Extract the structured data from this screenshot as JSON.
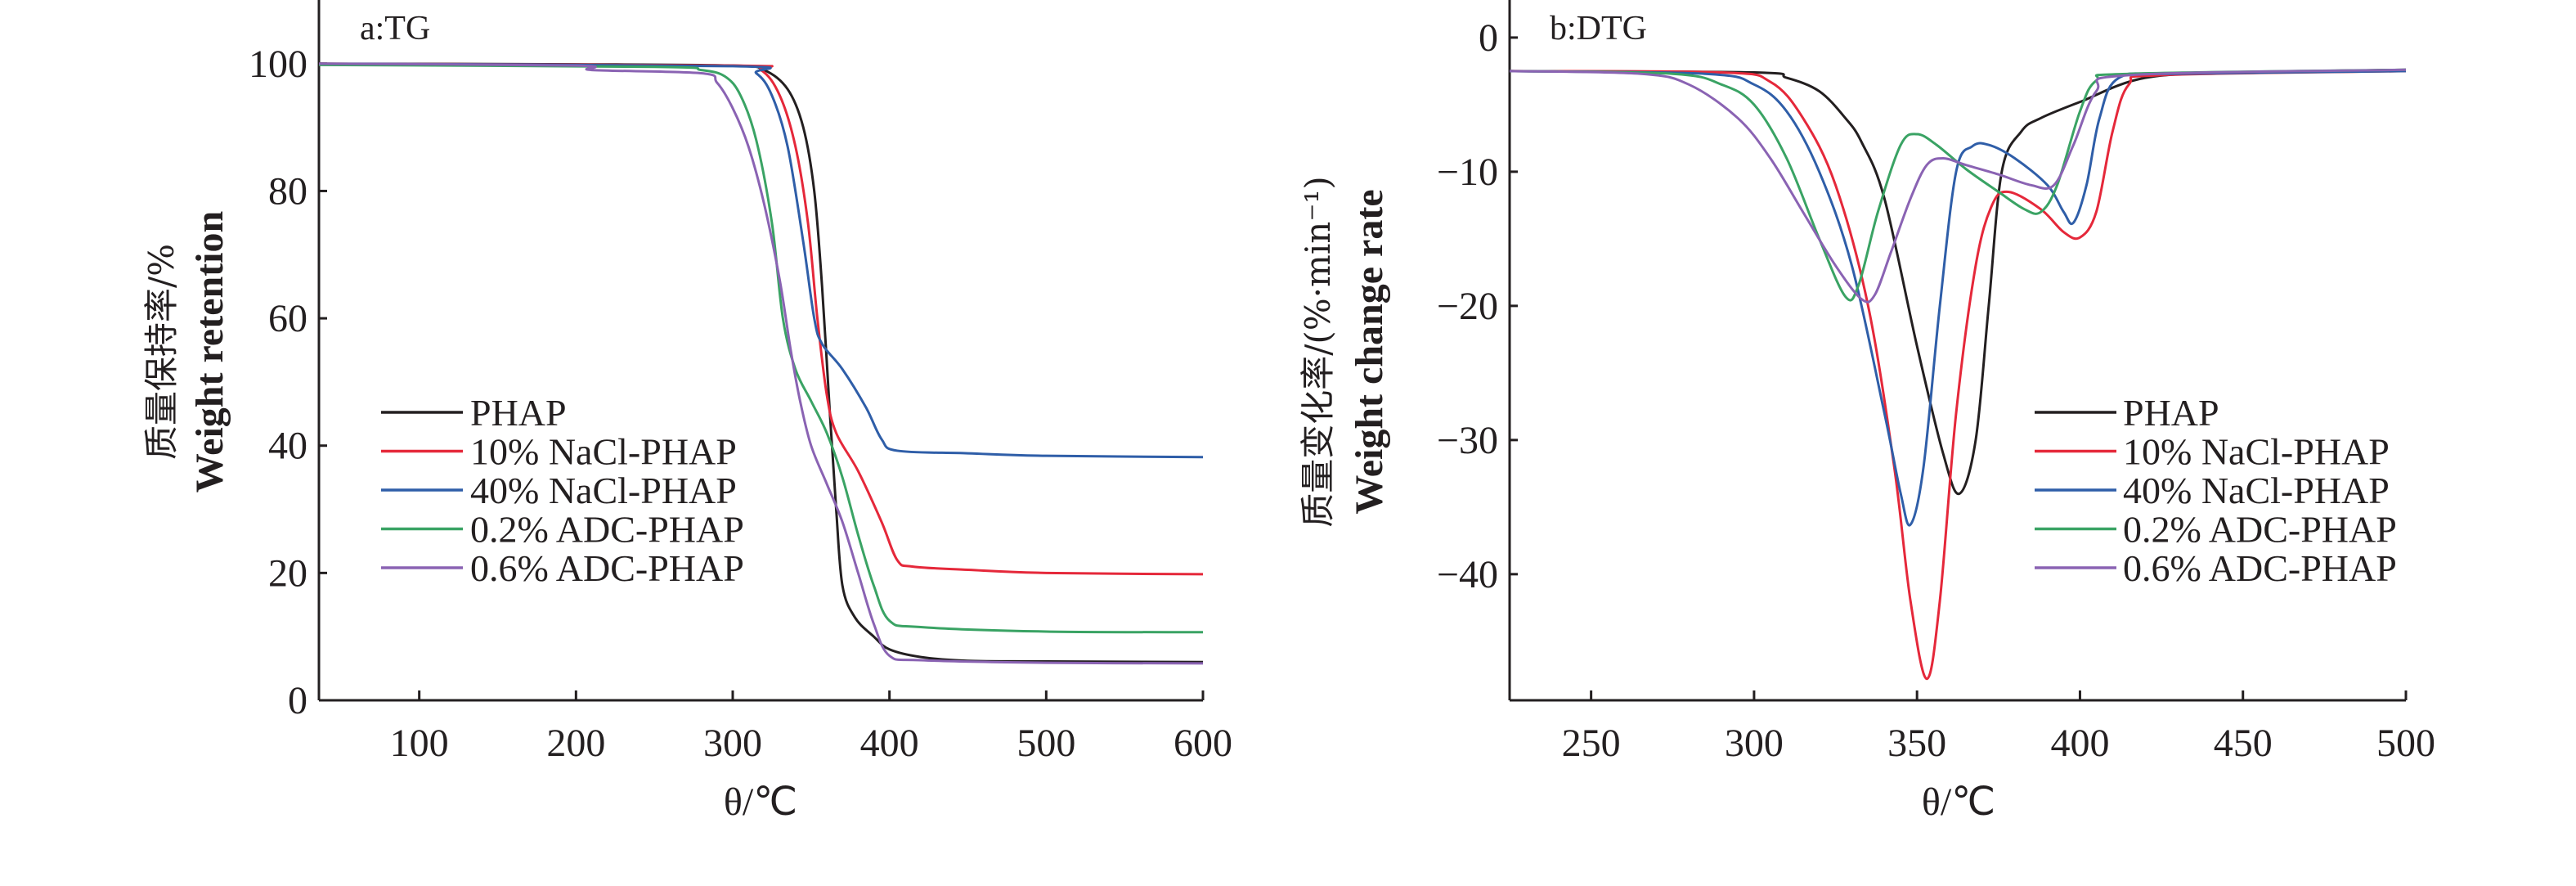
{
  "chart_data": [
    {
      "type": "line",
      "title": "a:TG",
      "xlabel": "θ/℃",
      "ylabel_cn": "质量保持率/%",
      "ylabel_en": "Weight retention",
      "xlim": [
        36,
        600
      ],
      "ylim": [
        0,
        110
      ],
      "xticks": [
        100,
        200,
        300,
        400,
        500,
        600
      ],
      "yticks": [
        0,
        20,
        40,
        60,
        80,
        100
      ],
      "grid": false,
      "legend_position": "center-left",
      "series": [
        {
          "name": "PHAP",
          "color": "#231f20",
          "points": [
            [
              36,
              100
            ],
            [
              200,
              99.9
            ],
            [
              300,
              99.7
            ],
            [
              320,
              99
            ],
            [
              335,
              96
            ],
            [
              345,
              90
            ],
            [
              352,
              80
            ],
            [
              357,
              65
            ],
            [
              362,
              45
            ],
            [
              366,
              30
            ],
            [
              370,
              18
            ],
            [
              378,
              13
            ],
            [
              390,
              10
            ],
            [
              400,
              8
            ],
            [
              420,
              6.8
            ],
            [
              450,
              6.2
            ],
            [
              500,
              6.1
            ],
            [
              600,
              6.0
            ]
          ]
        },
        {
          "name": "10% NaCl-PHAP",
          "color": "#e5283a",
          "points": [
            [
              36,
              100
            ],
            [
              300,
              99.7
            ],
            [
              318,
              99
            ],
            [
              330,
              95
            ],
            [
              340,
              87
            ],
            [
              348,
              75
            ],
            [
              354,
              60
            ],
            [
              360,
              48
            ],
            [
              366,
              42
            ],
            [
              380,
              36
            ],
            [
              395,
              28
            ],
            [
              405,
              22
            ],
            [
              415,
              21
            ],
            [
              450,
              20.5
            ],
            [
              500,
              20
            ],
            [
              600,
              19.8
            ]
          ]
        },
        {
          "name": "40% NaCl-PHAP",
          "color": "#2f5ea8",
          "points": [
            [
              36,
              100
            ],
            [
              300,
              99.6
            ],
            [
              315,
              98.5
            ],
            [
              325,
              95
            ],
            [
              335,
              87
            ],
            [
              345,
              72
            ],
            [
              352,
              60
            ],
            [
              357,
              56
            ],
            [
              370,
              52
            ],
            [
              385,
              46
            ],
            [
              395,
              41
            ],
            [
              405,
              39.2
            ],
            [
              450,
              38.8
            ],
            [
              500,
              38.4
            ],
            [
              600,
              38.2
            ]
          ]
        },
        {
          "name": "0.2% ADC-PHAP",
          "color": "#3aa364",
          "points": [
            [
              36,
              99.8
            ],
            [
              250,
              99.5
            ],
            [
              280,
              99
            ],
            [
              295,
              98
            ],
            [
              305,
              95
            ],
            [
              315,
              88
            ],
            [
              325,
              75
            ],
            [
              332,
              60
            ],
            [
              340,
              52
            ],
            [
              350,
              47
            ],
            [
              360,
              42
            ],
            [
              370,
              35
            ],
            [
              380,
              26
            ],
            [
              390,
              18
            ],
            [
              400,
              12.5
            ],
            [
              420,
              11.5
            ],
            [
              500,
              10.8
            ],
            [
              600,
              10.7
            ]
          ]
        },
        {
          "name": "0.6% ADC-PHAP",
          "color": "#8a63b3",
          "points": [
            [
              36,
              100
            ],
            [
              200,
              99.7
            ],
            [
              210,
              99.0
            ],
            [
              280,
              98.5
            ],
            [
              290,
              97
            ],
            [
              300,
              93
            ],
            [
              310,
              87
            ],
            [
              320,
              78
            ],
            [
              330,
              66
            ],
            [
              337,
              55
            ],
            [
              343,
              47
            ],
            [
              350,
              40
            ],
            [
              360,
              34
            ],
            [
              370,
              28
            ],
            [
              380,
              20
            ],
            [
              390,
              12
            ],
            [
              400,
              7
            ],
            [
              420,
              6.3
            ],
            [
              500,
              5.9
            ],
            [
              600,
              5.8
            ]
          ]
        }
      ]
    },
    {
      "type": "line",
      "title": "b:DTG",
      "xlabel": "θ/℃",
      "ylabel_cn": "质量变化率/(%·min⁻¹)",
      "ylabel_en": "Weight change rate",
      "xlim": [
        225,
        500
      ],
      "ylim": [
        -49.4,
        2.8
      ],
      "xticks": [
        250,
        300,
        350,
        400,
        450,
        500
      ],
      "yticks": [
        0,
        -10,
        -20,
        -30,
        -40
      ],
      "ytick_labels": [
        "0",
        "−10",
        "−20",
        "−30",
        "−40"
      ],
      "grid": false,
      "legend_position": "center-right",
      "series": [
        {
          "name": "PHAP",
          "color": "#231f20",
          "points": [
            [
              225,
              -2.5
            ],
            [
              300,
              -2.6
            ],
            [
              310,
              -3
            ],
            [
              320,
              -4
            ],
            [
              328,
              -6
            ],
            [
              333,
              -7.8
            ],
            [
              340,
              -12
            ],
            [
              350,
              -23
            ],
            [
              358,
              -31
            ],
            [
              363,
              -34
            ],
            [
              368,
              -30
            ],
            [
              372,
              -20
            ],
            [
              376,
              -10
            ],
            [
              382,
              -7
            ],
            [
              388,
              -6
            ],
            [
              400,
              -4.8
            ],
            [
              420,
              -3
            ],
            [
              450,
              -2.6
            ],
            [
              500,
              -2.4
            ]
          ]
        },
        {
          "name": "10% NaCl-PHAP",
          "color": "#e5283a",
          "points": [
            [
              225,
              -2.5
            ],
            [
              290,
              -2.6
            ],
            [
              305,
              -3.3
            ],
            [
              315,
              -6
            ],
            [
              325,
              -11
            ],
            [
              335,
              -20
            ],
            [
              343,
              -32
            ],
            [
              348,
              -42
            ],
            [
              353,
              -47.8
            ],
            [
              357,
              -42
            ],
            [
              362,
              -28
            ],
            [
              368,
              -17
            ],
            [
              373,
              -12.5
            ],
            [
              378,
              -11.5
            ],
            [
              388,
              -12.8
            ],
            [
              395,
              -14.5
            ],
            [
              400,
              -14.9
            ],
            [
              405,
              -13
            ],
            [
              410,
              -7
            ],
            [
              415,
              -3.5
            ],
            [
              425,
              -2.8
            ],
            [
              500,
              -2.5
            ]
          ]
        },
        {
          "name": "40% NaCl-PHAP",
          "color": "#2f5ea8",
          "points": [
            [
              225,
              -2.5
            ],
            [
              285,
              -2.7
            ],
            [
              300,
              -3.5
            ],
            [
              310,
              -5.5
            ],
            [
              320,
              -10
            ],
            [
              330,
              -17
            ],
            [
              340,
              -28
            ],
            [
              345,
              -34
            ],
            [
              348,
              -36.3
            ],
            [
              352,
              -32
            ],
            [
              357,
              -20
            ],
            [
              362,
              -10
            ],
            [
              367,
              -8.1
            ],
            [
              372,
              -8
            ],
            [
              380,
              -9
            ],
            [
              390,
              -11
            ],
            [
              395,
              -13
            ],
            [
              398,
              -13.8
            ],
            [
              402,
              -11
            ],
            [
              406,
              -6
            ],
            [
              412,
              -3
            ],
            [
              430,
              -2.7
            ],
            [
              500,
              -2.5
            ]
          ]
        },
        {
          "name": "0.2% ADC-PHAP",
          "color": "#3aa364",
          "points": [
            [
              225,
              -2.5
            ],
            [
              275,
              -2.7
            ],
            [
              290,
              -3.5
            ],
            [
              300,
              -5
            ],
            [
              310,
              -9
            ],
            [
              320,
              -15
            ],
            [
              328,
              -19.3
            ],
            [
              332,
              -18.5
            ],
            [
              338,
              -13
            ],
            [
              345,
              -8
            ],
            [
              350,
              -7.2
            ],
            [
              356,
              -8
            ],
            [
              365,
              -9.8
            ],
            [
              375,
              -11.5
            ],
            [
              383,
              -12.8
            ],
            [
              388,
              -13
            ],
            [
              393,
              -11
            ],
            [
              400,
              -5.5
            ],
            [
              405,
              -3.2
            ],
            [
              415,
              -2.7
            ],
            [
              500,
              -2.4
            ]
          ]
        },
        {
          "name": "0.6% ADC-PHAP",
          "color": "#8a63b3",
          "points": [
            [
              225,
              -2.5
            ],
            [
              265,
              -2.7
            ],
            [
              280,
              -3.5
            ],
            [
              295,
              -6
            ],
            [
              305,
              -9
            ],
            [
              315,
              -13
            ],
            [
              325,
              -17
            ],
            [
              333,
              -19.5
            ],
            [
              337,
              -19.2
            ],
            [
              342,
              -16
            ],
            [
              348,
              -12
            ],
            [
              353,
              -9.5
            ],
            [
              358,
              -9
            ],
            [
              365,
              -9.5
            ],
            [
              375,
              -10.2
            ],
            [
              385,
              -11
            ],
            [
              392,
              -11
            ],
            [
              398,
              -8
            ],
            [
              405,
              -4
            ],
            [
              415,
              -2.8
            ],
            [
              500,
              -2.4
            ]
          ]
        }
      ]
    }
  ]
}
